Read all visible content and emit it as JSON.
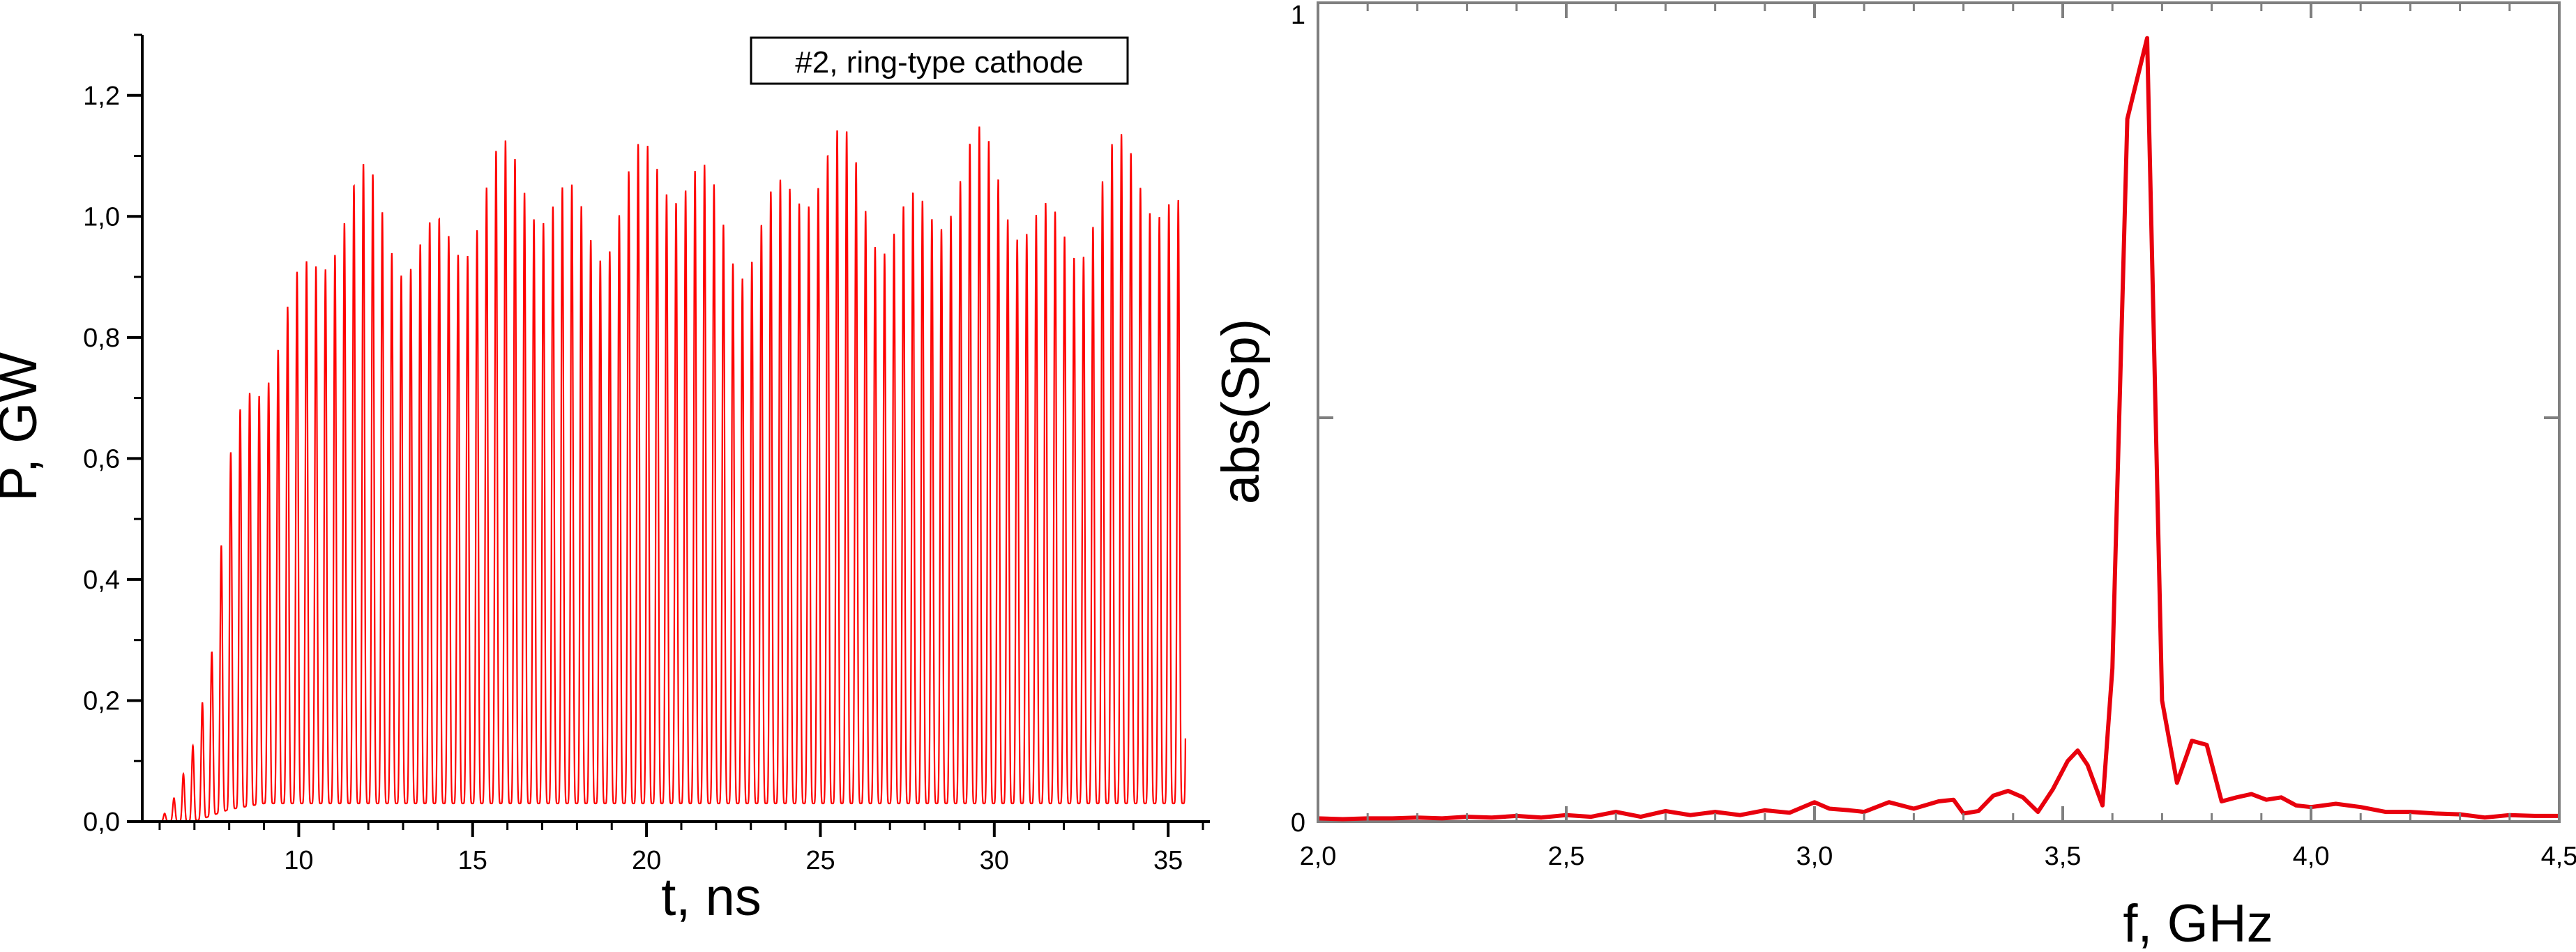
{
  "chart_data": [
    {
      "type": "line",
      "title": "",
      "xlabel": "t, ns",
      "ylabel": "P, GW",
      "xlim": [
        5.5,
        36.2
      ],
      "ylim": [
        0.0,
        1.3
      ],
      "x_ticks": [
        "10",
        "15",
        "20",
        "25",
        "30",
        "35"
      ],
      "y_ticks": [
        "0,0",
        "0,2",
        "0,4",
        "0,6",
        "0,8",
        "1,0",
        "1,2"
      ],
      "grid": false,
      "legend": {
        "position": "top-right",
        "entries": [
          "#2, ring-type cathode"
        ]
      },
      "series": [
        {
          "color": "#ff0000",
          "waveform": {
            "t_start": 6.0,
            "t_end": 35.5,
            "oscillation_frequency_ghz": 3.67,
            "envelope_peak": [
              [
                6.0,
                0.0
              ],
              [
                6.5,
                0.05
              ],
              [
                7.0,
                0.15
              ],
              [
                7.5,
                0.3
              ],
              [
                8.0,
                0.62
              ],
              [
                8.5,
                0.82
              ],
              [
                9.0,
                0.9
              ],
              [
                9.5,
                0.95
              ],
              [
                10.0,
                1.0
              ],
              [
                11.0,
                1.06
              ],
              [
                12.0,
                1.1
              ],
              [
                13.0,
                1.1
              ],
              [
                14.0,
                1.12
              ],
              [
                15.0,
                1.12
              ],
              [
                16.0,
                1.13
              ],
              [
                18.0,
                1.17
              ],
              [
                20.0,
                1.15
              ],
              [
                22.0,
                1.15
              ],
              [
                24.0,
                1.13
              ],
              [
                26.0,
                1.18
              ],
              [
                28.0,
                1.15
              ],
              [
                30.0,
                1.15
              ],
              [
                32.0,
                1.14
              ],
              [
                34.0,
                1.15
              ],
              [
                35.0,
                1.13
              ],
              [
                35.5,
                1.1
              ]
            ],
            "envelope_trough": [
              [
                6.0,
                0.0
              ],
              [
                7.0,
                0.0
              ],
              [
                8.0,
                0.02
              ],
              [
                9.0,
                0.03
              ],
              [
                12.0,
                0.03
              ],
              [
                20.0,
                0.03
              ],
              [
                30.0,
                0.03
              ],
              [
                35.5,
                0.03
              ]
            ]
          }
        }
      ]
    },
    {
      "type": "line",
      "title": "",
      "xlabel": "f, GHz",
      "ylabel": "abs(Sp)",
      "xlim": [
        2.0,
        4.5
      ],
      "ylim": [
        0.0,
        1.0
      ],
      "x_ticks": [
        "2,0",
        "2,5",
        "3,0",
        "3,5",
        "4,0",
        "4,5"
      ],
      "y_ticks": [
        "0",
        "1"
      ],
      "grid": false,
      "series": [
        {
          "color": "#e8000d",
          "x": [
            2.0,
            2.05,
            2.1,
            2.15,
            2.2,
            2.25,
            2.3,
            2.35,
            2.4,
            2.45,
            2.5,
            2.55,
            2.6,
            2.65,
            2.7,
            2.75,
            2.8,
            2.85,
            2.9,
            2.95,
            3.0,
            3.03,
            3.07,
            3.1,
            3.15,
            3.2,
            3.25,
            3.28,
            3.3,
            3.33,
            3.36,
            3.39,
            3.42,
            3.45,
            3.48,
            3.51,
            3.53,
            3.55,
            3.58,
            3.6,
            3.63,
            3.67,
            3.7,
            3.73,
            3.76,
            3.79,
            3.82,
            3.85,
            3.88,
            3.91,
            3.94,
            3.97,
            4.0,
            4.05,
            4.1,
            4.15,
            4.2,
            4.25,
            4.3,
            4.35,
            4.4,
            4.45,
            4.5
          ],
          "y": [
            0.004,
            0.003,
            0.004,
            0.004,
            0.005,
            0.004,
            0.006,
            0.005,
            0.007,
            0.005,
            0.008,
            0.006,
            0.012,
            0.006,
            0.013,
            0.008,
            0.012,
            0.008,
            0.014,
            0.011,
            0.024,
            0.016,
            0.014,
            0.012,
            0.024,
            0.016,
            0.025,
            0.027,
            0.01,
            0.013,
            0.032,
            0.038,
            0.03,
            0.012,
            0.04,
            0.075,
            0.088,
            0.07,
            0.02,
            0.19,
            0.87,
            0.97,
            0.15,
            0.048,
            0.1,
            0.095,
            0.025,
            0.03,
            0.034,
            0.027,
            0.03,
            0.02,
            0.018,
            0.022,
            0.018,
            0.012,
            0.012,
            0.01,
            0.009,
            0.005,
            0.008,
            0.007,
            0.007
          ]
        }
      ]
    }
  ]
}
